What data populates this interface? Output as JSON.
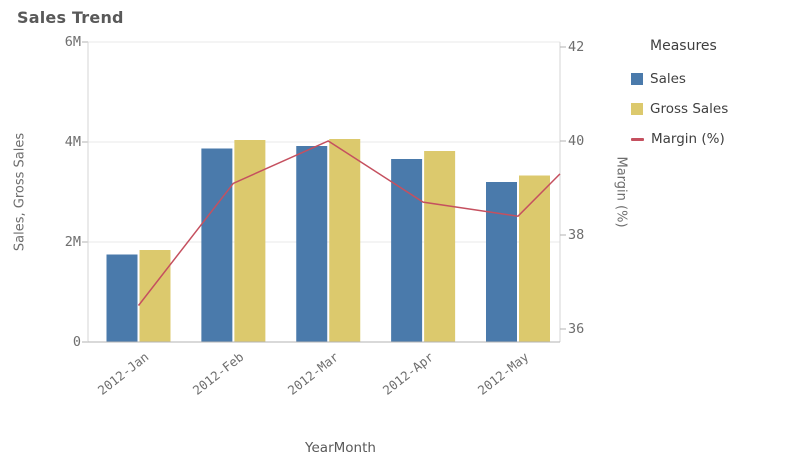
{
  "title": "Sales Trend",
  "legend": {
    "title": "Measures"
  },
  "colors": {
    "bar_sales": "#4a7aab",
    "bar_gross_sales": "#dcc96d",
    "line_margin": "#c5505f",
    "gridline": "#e8e8e8",
    "axis_line": "#d6d6d6",
    "baseline": "#b3b3b3",
    "tick_mark": "#b3b3b3",
    "tick_text": "#6e6e6e",
    "title_text": "#595959",
    "legend_text": "#404040"
  },
  "chart_data": {
    "type": "combo",
    "title": "Sales Trend",
    "categories": [
      "2012-Jan",
      "2012-Feb",
      "2012-Mar",
      "2012-Apr",
      "2012-May"
    ],
    "series": [
      {
        "name": "Sales",
        "type": "bar",
        "axis": "left",
        "color": "#4a7aab",
        "values": [
          1.75,
          3.87,
          3.92,
          3.66,
          3.2
        ]
      },
      {
        "name": "Gross Sales",
        "type": "bar",
        "axis": "left",
        "color": "#dcc96d",
        "values": [
          1.84,
          4.04,
          4.06,
          3.82,
          3.33
        ]
      },
      {
        "name": "Margin (%)",
        "type": "line",
        "axis": "right",
        "color": "#c5505f",
        "values": [
          36.5,
          39.1,
          40.0,
          38.7,
          38.4
        ],
        "clipped_edge_value": 39.3
      }
    ],
    "left_axis": {
      "title": "Sales, Gross Sales",
      "unit": "M",
      "range": [
        0,
        6
      ],
      "tick_values": [
        0,
        2,
        4,
        6
      ],
      "tick_labels": [
        "0",
        "2M",
        "4M",
        "6M"
      ]
    },
    "right_axis": {
      "title": "Margin (%)",
      "range": [
        36,
        42
      ],
      "tick_values": [
        36,
        38,
        40,
        42
      ],
      "tick_labels": [
        "36",
        "38",
        "40",
        "42"
      ]
    },
    "x_axis": {
      "title": "YearMonth"
    },
    "grid": true,
    "legend_position": "right",
    "legend_title": "Measures"
  }
}
